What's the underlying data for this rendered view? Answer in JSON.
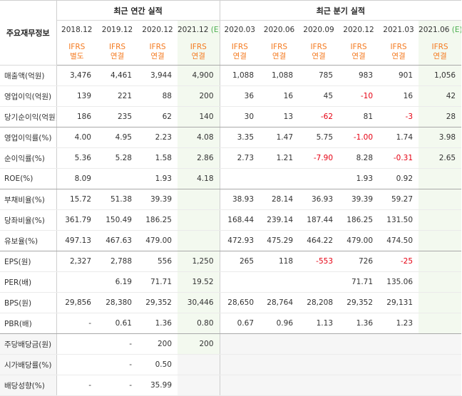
{
  "table": {
    "row_header": "주요재무정보",
    "annual_group": "최근 연간 실적",
    "quarter_group": "최근 분기 실적",
    "annual_periods": [
      "2018.12",
      "2019.12",
      "2020.12",
      "2021.12"
    ],
    "annual_estimate_mark": "(E)",
    "quarter_periods": [
      "2020.03",
      "2020.06",
      "2020.09",
      "2020.12",
      "2021.03",
      "2021.06"
    ],
    "quarter_estimate_mark": "(E)",
    "basis": [
      [
        "IFRS",
        "별도"
      ],
      [
        "IFRS",
        "연결"
      ],
      [
        "IFRS",
        "연결"
      ],
      [
        "IFRS",
        "연결"
      ],
      [
        "IFRS",
        "연결"
      ],
      [
        "IFRS",
        "연결"
      ],
      [
        "IFRS",
        "연결"
      ],
      [
        "IFRS",
        "연결"
      ],
      [
        "IFRS",
        "연결"
      ],
      [
        "IFRS",
        "연결"
      ]
    ],
    "rows": [
      {
        "label": "매출액(억원)",
        "values": [
          "3,476",
          "4,461",
          "3,944",
          "4,900",
          "1,088",
          "1,088",
          "785",
          "983",
          "901",
          "1,056"
        ]
      },
      {
        "label": "영업이익(억원)",
        "values": [
          "139",
          "221",
          "88",
          "200",
          "36",
          "16",
          "45",
          "-10",
          "16",
          "42"
        ]
      },
      {
        "label": "당기순이익(억원)",
        "values": [
          "186",
          "235",
          "62",
          "140",
          "30",
          "13",
          "-62",
          "81",
          "-3",
          "28"
        ]
      },
      {
        "label": "영업이익률(%)",
        "values": [
          "4.00",
          "4.95",
          "2.23",
          "4.08",
          "3.35",
          "1.47",
          "5.75",
          "-1.00",
          "1.74",
          "3.98"
        ]
      },
      {
        "label": "순이익률(%)",
        "values": [
          "5.36",
          "5.28",
          "1.58",
          "2.86",
          "2.73",
          "1.21",
          "-7.90",
          "8.28",
          "-0.31",
          "2.65"
        ]
      },
      {
        "label": "ROE(%)",
        "values": [
          "8.09",
          "",
          "1.93",
          "4.18",
          "",
          "",
          "",
          "1.93",
          "0.92",
          ""
        ]
      },
      {
        "label": "부채비율(%)",
        "values": [
          "15.72",
          "51.38",
          "39.39",
          "",
          "38.93",
          "28.14",
          "36.93",
          "39.39",
          "59.27",
          ""
        ]
      },
      {
        "label": "당좌비율(%)",
        "values": [
          "361.79",
          "150.49",
          "186.25",
          "",
          "168.44",
          "239.14",
          "187.44",
          "186.25",
          "131.50",
          ""
        ]
      },
      {
        "label": "유보율(%)",
        "values": [
          "497.13",
          "467.63",
          "479.00",
          "",
          "472.93",
          "475.29",
          "464.22",
          "479.00",
          "474.50",
          ""
        ]
      },
      {
        "label": "EPS(원)",
        "values": [
          "2,327",
          "2,788",
          "556",
          "1,250",
          "265",
          "118",
          "-553",
          "726",
          "-25",
          ""
        ]
      },
      {
        "label": "PER(배)",
        "values": [
          "",
          "6.19",
          "71.71",
          "19.52",
          "",
          "",
          "",
          "71.71",
          "135.06",
          ""
        ]
      },
      {
        "label": "BPS(원)",
        "values": [
          "29,856",
          "28,380",
          "29,352",
          "30,446",
          "28,650",
          "28,764",
          "28,208",
          "29,352",
          "29,131",
          ""
        ]
      },
      {
        "label": "PBR(배)",
        "values": [
          "-",
          "0.61",
          "1.36",
          "0.80",
          "0.67",
          "0.96",
          "1.13",
          "1.36",
          "1.23",
          ""
        ]
      },
      {
        "label": "주당배당금(원)",
        "values": [
          "",
          "-",
          "200",
          "200",
          "",
          "",
          "",
          "",
          "",
          ""
        ]
      },
      {
        "label": "시가배당률(%)",
        "values": [
          "",
          "-",
          "0.50",
          "",
          "",
          "",
          "",
          "",
          "",
          ""
        ]
      },
      {
        "label": "배당성향(%)",
        "values": [
          "-",
          "-",
          "35.99",
          "",
          "",
          "",
          "",
          "",
          "",
          ""
        ]
      }
    ],
    "colors": {
      "estimate_bg": "#f3f9ef",
      "basis_text": "#f47a20",
      "negative": "#e60012",
      "estimate_mark": "#4caf50",
      "dividend_bg": "#f6f6f6"
    }
  }
}
